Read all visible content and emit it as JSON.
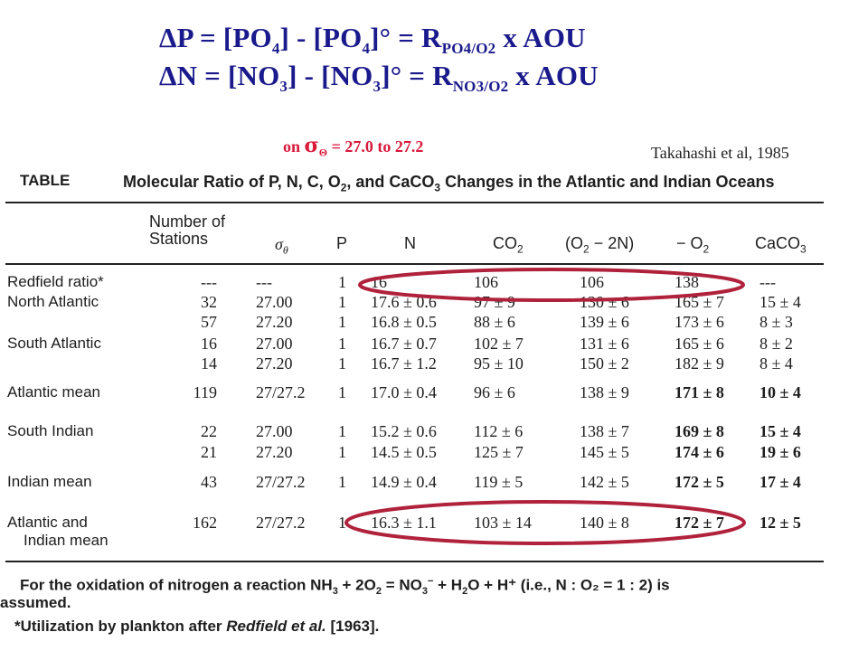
{
  "equations": {
    "line1": {
      "delta": "ΔP = [PO",
      "sub1": "4",
      "mid": "] - [PO",
      "sub2": "4",
      "tail": "]° = R",
      "rsub": "PO4/O2",
      "end": "  x  AOU"
    },
    "line2": {
      "delta": "ΔN = [NO",
      "sub1": "3",
      "mid": "] - [NO",
      "sub2": "3",
      "tail": "]° = R",
      "rsub": "NO3/O2",
      "end": "  x  AOU"
    }
  },
  "sigma_note": {
    "prefix": "on ",
    "symbol": "σ",
    "sub": "Θ",
    "suffix": " = 27.0 to 27.2"
  },
  "citation": "Takahashi et al, 1985",
  "table": {
    "title_word": "TABLE",
    "caption_pre": "Molecular Ratio of P, N, C, O",
    "caption_sub": "2",
    "caption_post": ", and CaCO",
    "caption_sub2": "3",
    "caption_end": " Changes in the Atlantic and Indian Oceans",
    "headers": {
      "stations_line1": "Number of",
      "stations_line2": "Stations",
      "sigma": "σ",
      "sigma_sub": "θ",
      "p": "P",
      "n": "N",
      "co2": "CO",
      "co2_sub": "2",
      "o2n": "(O",
      "o2n_sub": "2",
      "o2n_end": " − 2N)",
      "neg_o2": "− O",
      "neg_o2_sub": "2",
      "caco3": "CaCO",
      "caco3_sub": "3"
    },
    "rows": [
      {
        "label": "Redfield ratio*",
        "stations": "---",
        "sigma": "---",
        "p": "1",
        "n": "16",
        "co2": "106",
        "o2n": "106",
        "neg_o2": "138",
        "caco3": "---"
      },
      {
        "label": "North Atlantic",
        "stations": "32",
        "sigma": "27.00",
        "p": "1",
        "n": "17.6 ± 0.6",
        "co2": "97 ± 9",
        "o2n": "130 ± 6",
        "neg_o2": "165 ± 7",
        "caco3": "15 ± 4"
      },
      {
        "label": "",
        "stations": "57",
        "sigma": "27.20",
        "p": "1",
        "n": "16.8 ± 0.5",
        "co2": "88 ± 6",
        "o2n": "139 ± 6",
        "neg_o2": "173 ± 6",
        "caco3": "8 ± 3"
      },
      {
        "label": "South Atlantic",
        "stations": "16",
        "sigma": "27.00",
        "p": "1",
        "n": "16.7 ± 0.7",
        "co2": "102 ± 7",
        "o2n": "131 ± 6",
        "neg_o2": "165 ± 6",
        "caco3": "8 ± 2"
      },
      {
        "label": "",
        "stations": "14",
        "sigma": "27.20",
        "p": "1",
        "n": "16.7 ± 1.2",
        "co2": "95 ± 10",
        "o2n": "150 ± 2",
        "neg_o2": "182 ± 9",
        "caco3": "8 ± 4"
      },
      {
        "label": "Atlantic mean",
        "stations": "119",
        "sigma": "27/27.2",
        "p": "1",
        "n": "17.0 ± 0.4",
        "co2": "96 ± 6",
        "o2n": "138 ± 9",
        "neg_o2": "171 ± 8",
        "caco3": "10 ± 4"
      },
      {
        "label": "South Indian",
        "stations": "22",
        "sigma": "27.00",
        "p": "1",
        "n": "15.2 ± 0.6",
        "co2": "112 ± 6",
        "o2n": "138 ± 7",
        "neg_o2": "169 ± 8",
        "caco3": "15 ± 4"
      },
      {
        "label": "",
        "stations": "21",
        "sigma": "27.20",
        "p": "1",
        "n": "14.5 ± 0.5",
        "co2": "125 ± 7",
        "o2n": "145 ± 5",
        "neg_o2": "174 ± 6",
        "caco3": "19 ± 6"
      },
      {
        "label": "Indian mean",
        "stations": "43",
        "sigma": "27/27.2",
        "p": "1",
        "n": "14.9 ± 0.4",
        "co2": "119 ± 5",
        "o2n": "142 ± 5",
        "neg_o2": "172 ± 5",
        "caco3": "17 ± 4"
      },
      {
        "label": "Atlantic and",
        "label2": "Indian mean",
        "stations": "162",
        "sigma": "27/27.2",
        "p": "1",
        "n": "16.3 ± 1.1",
        "co2": "103 ± 14",
        "o2n": "140 ± 8",
        "neg_o2": "172 ± 7",
        "caco3": "12 ± 5"
      }
    ]
  },
  "footnotes": {
    "line1_pre": "For the oxidation of nitrogen a reaction NH",
    "line1_s1": "3",
    "line1_mid": " + 2O",
    "line1_s2": "2",
    "line1_mid2": " = NO",
    "line1_s3": "3",
    "line1_sup": "−",
    "line1_mid3": " + H",
    "line1_s4": "2",
    "line1_end": "O + H⁺ (i.e., N : O₂ = 1 : 2) is",
    "line2": "assumed.",
    "line3_pre": "*Utilization by plankton after ",
    "line3_italic": "Redfield et al.",
    "line3_end": " [1963]."
  },
  "highlight_color": "#b0223c",
  "equation_color": "#1a1a8c",
  "sigma_note_color": "#d8193a"
}
